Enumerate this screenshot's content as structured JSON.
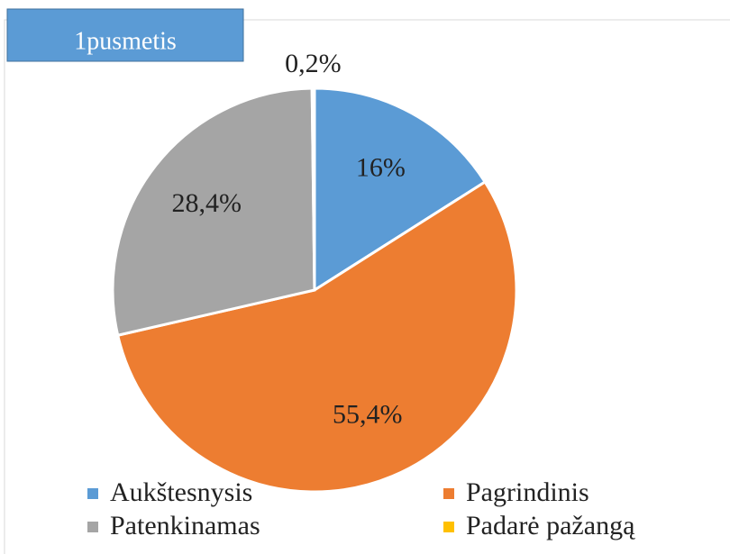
{
  "chart_data": {
    "type": "pie",
    "title": "1pusmetis",
    "categories": [
      "Aukštesnysis",
      "Pagrindinis",
      "Patenkinamas",
      "Padarė pažangą"
    ],
    "values": [
      16,
      55.4,
      28.4,
      0.2
    ],
    "value_labels": [
      "16%",
      "55,4%",
      "28,4%",
      "0,2%"
    ],
    "colors": [
      "#5b9bd5",
      "#ed7d31",
      "#a5a5a5",
      "#ffc000"
    ],
    "legend": "bottom"
  }
}
